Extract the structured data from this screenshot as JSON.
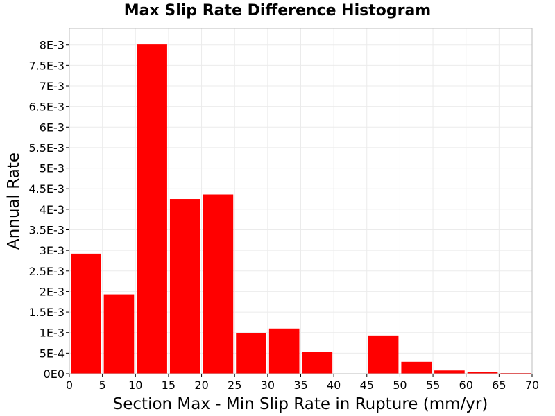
{
  "chart_data": {
    "type": "bar",
    "title": "Max Slip Rate Difference Histogram",
    "xlabel": "Section Max - Min Slip Rate in Rupture (mm/yr)",
    "ylabel": "Annual Rate",
    "xlim": [
      0,
      70
    ],
    "ylim": [
      0,
      0.0084
    ],
    "bin_width": 5,
    "x_ticks": [
      0,
      5,
      10,
      15,
      20,
      25,
      30,
      35,
      40,
      45,
      50,
      55,
      60,
      65,
      70
    ],
    "x_tick_labels": [
      "0",
      "5",
      "10",
      "15",
      "20",
      "25",
      "30",
      "35",
      "40",
      "45",
      "50",
      "55",
      "60",
      "65",
      "70"
    ],
    "y_ticks": [
      0,
      0.0005,
      0.001,
      0.0015,
      0.002,
      0.0025,
      0.003,
      0.0035,
      0.004,
      0.0045,
      0.005,
      0.0055,
      0.006,
      0.0065,
      0.007,
      0.0075,
      0.008
    ],
    "y_tick_labels": [
      "0E0",
      "5E-4",
      "1E-3",
      "1.5E-3",
      "2E-3",
      "2.5E-3",
      "3E-3",
      "3.5E-3",
      "4E-3",
      "4.5E-3",
      "5E-3",
      "5.5E-3",
      "6E-3",
      "6.5E-3",
      "7E-3",
      "7.5E-3",
      "8E-3"
    ],
    "bins": [
      {
        "x_start": 0,
        "x_end": 5,
        "value": 0.00292
      },
      {
        "x_start": 5,
        "x_end": 10,
        "value": 0.00193
      },
      {
        "x_start": 10,
        "x_end": 15,
        "value": 0.00801
      },
      {
        "x_start": 15,
        "x_end": 20,
        "value": 0.00425
      },
      {
        "x_start": 20,
        "x_end": 25,
        "value": 0.00436
      },
      {
        "x_start": 25,
        "x_end": 30,
        "value": 0.00099
      },
      {
        "x_start": 30,
        "x_end": 35,
        "value": 0.0011
      },
      {
        "x_start": 35,
        "x_end": 40,
        "value": 0.00053
      },
      {
        "x_start": 40,
        "x_end": 45,
        "value": 0.0
      },
      {
        "x_start": 45,
        "x_end": 50,
        "value": 0.00093
      },
      {
        "x_start": 50,
        "x_end": 55,
        "value": 0.00029
      },
      {
        "x_start": 55,
        "x_end": 60,
        "value": 8e-05
      },
      {
        "x_start": 60,
        "x_end": 65,
        "value": 5e-05
      },
      {
        "x_start": 65,
        "x_end": 70,
        "value": 1e-05
      }
    ],
    "bar_color": "#ff0000",
    "grid": true,
    "grid_color": "#ebebeb",
    "legend": "none"
  }
}
